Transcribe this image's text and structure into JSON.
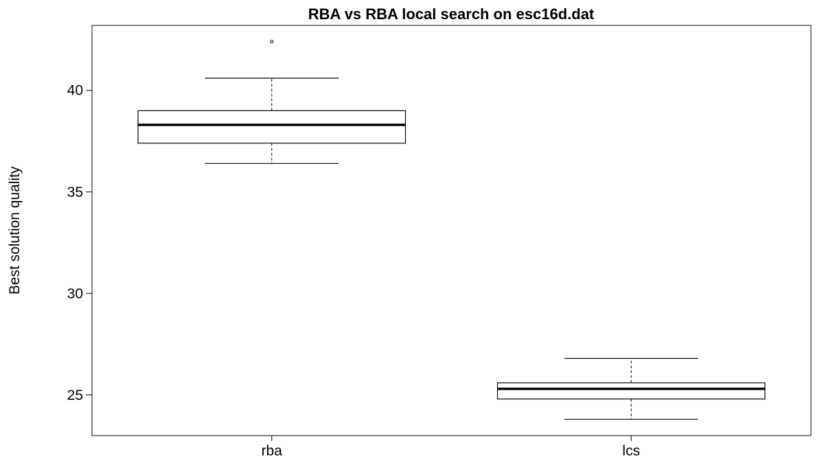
{
  "chart_data": {
    "type": "box",
    "title": "RBA vs RBA local search on esc16d.dat",
    "xlabel": "",
    "ylabel": "Best solution quality",
    "ylim": [
      23.0,
      43.2
    ],
    "yticks": [
      25,
      30,
      35,
      40
    ],
    "categories": [
      "rba",
      "lcs"
    ],
    "series": [
      {
        "category": "rba",
        "whisker_low": 36.4,
        "q1": 37.4,
        "median": 38.3,
        "q3": 39.0,
        "whisker_high": 40.6,
        "outliers": [
          42.4
        ]
      },
      {
        "category": "lcs",
        "whisker_low": 23.8,
        "q1": 24.8,
        "median": 25.3,
        "q3": 25.6,
        "whisker_high": 26.8,
        "outliers": []
      }
    ],
    "grid": false,
    "legend": "none"
  }
}
